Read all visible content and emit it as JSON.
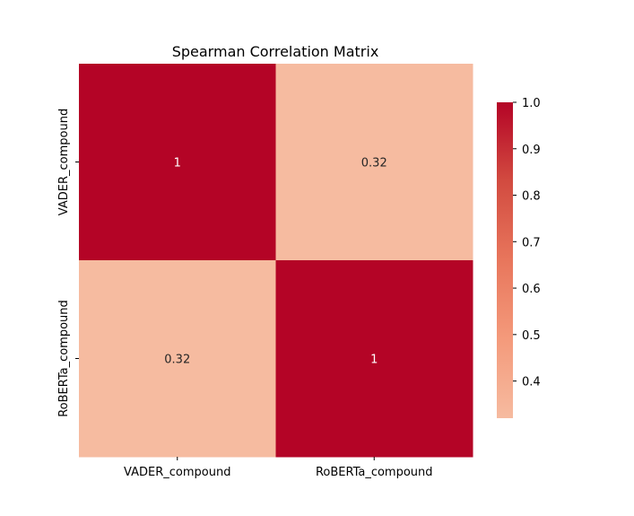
{
  "chart_data": {
    "type": "heatmap",
    "title": "Spearman Correlation Matrix",
    "x_categories": [
      "VADER_compound",
      "RoBERTa_compound"
    ],
    "y_categories": [
      "VADER_compound",
      "RoBERTa_compound"
    ],
    "values": [
      [
        1,
        0.32
      ],
      [
        0.32,
        1
      ]
    ],
    "annotations": [
      [
        "1",
        "0.32"
      ],
      [
        "0.32",
        "1"
      ]
    ],
    "colorbar": {
      "range": [
        0.32,
        1.0
      ],
      "ticks": [
        0.4,
        0.5,
        0.6,
        0.7,
        0.8,
        0.9,
        1.0
      ],
      "tick_labels": [
        "0.4",
        "0.5",
        "0.6",
        "0.7",
        "0.8",
        "0.9",
        "1.0"
      ],
      "colormap": "coolwarm"
    },
    "colors": {
      "high": "#b40426",
      "low": "#f6bba0",
      "annotation_on_dark": "#ffffff",
      "annotation_on_light": "#262626"
    }
  }
}
